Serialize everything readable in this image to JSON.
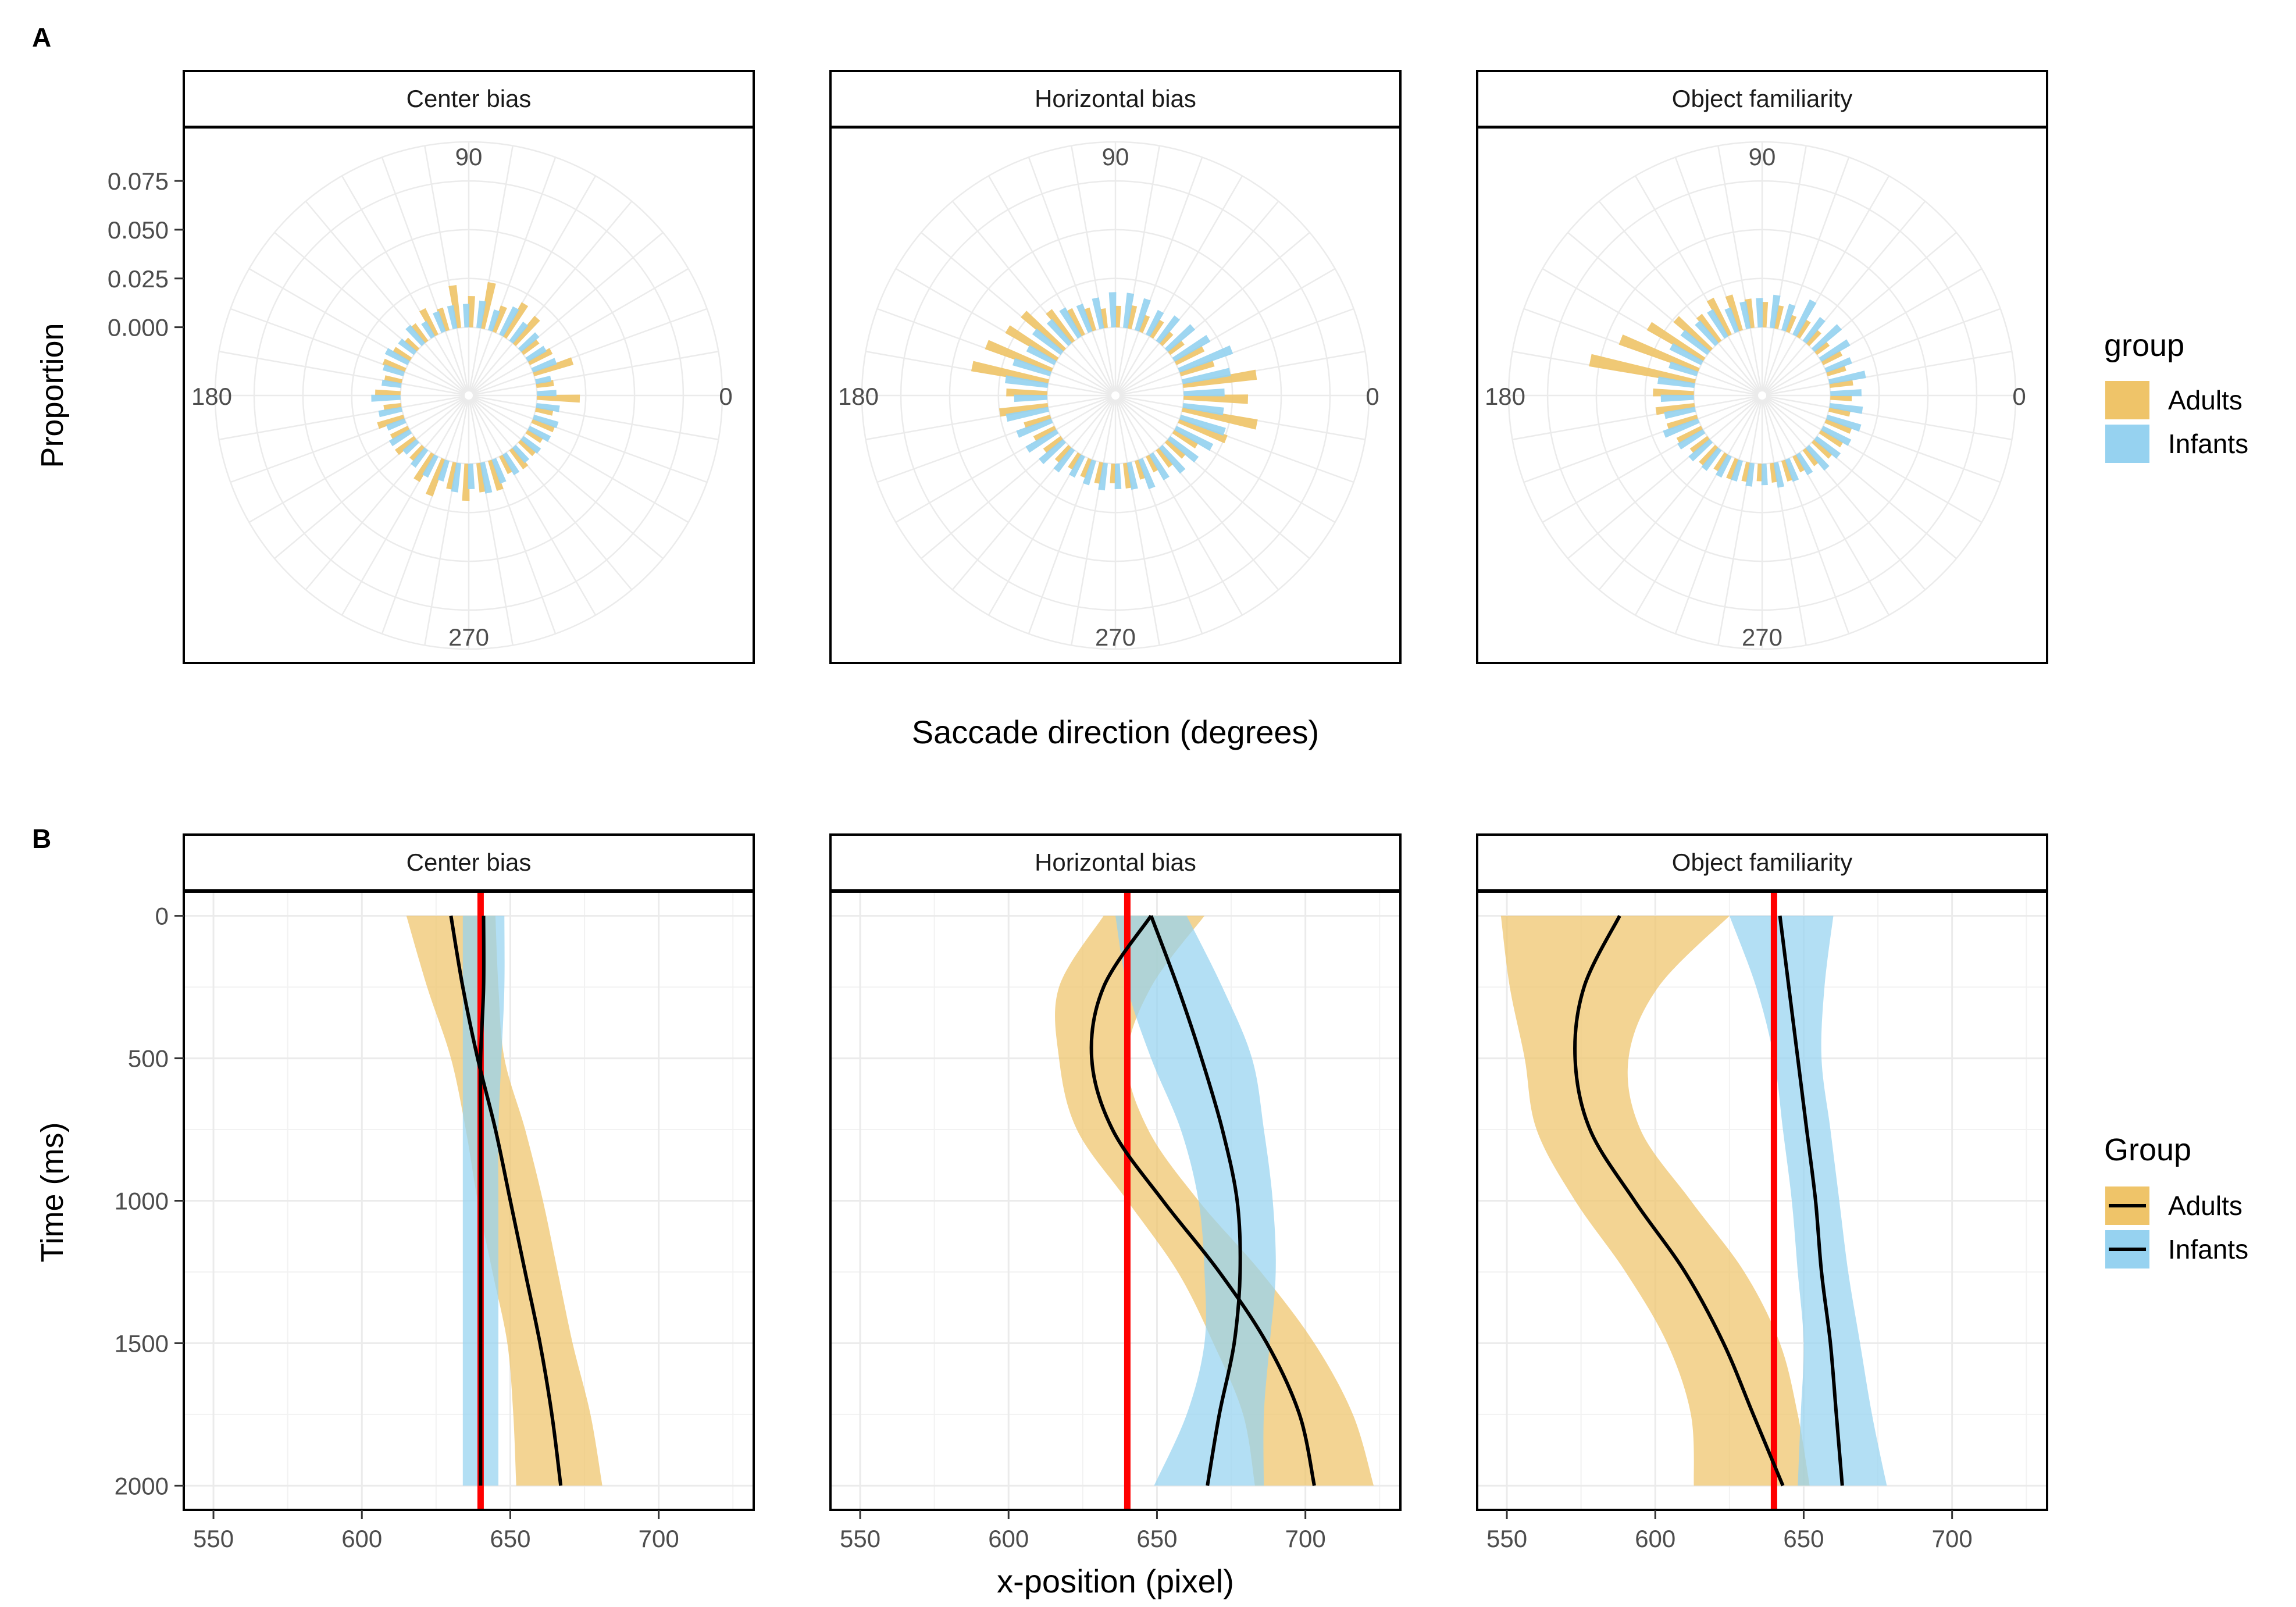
{
  "figure": {
    "panel_a_label": "A",
    "panel_b_label": "B",
    "colors": {
      "adults": "#EFC469",
      "infants": "#96D2F0",
      "reference_line": "#FF0000",
      "smooth_line": "#000000"
    }
  },
  "chart_data": [
    {
      "type": "polar-histogram",
      "panel": "A",
      "facets": [
        "Center bias",
        "Horizontal bias",
        "Object familiarity"
      ],
      "angle_labels": [
        "90",
        "180",
        "0",
        "270"
      ],
      "rlabel": "Proportion",
      "xlabel": "Saccade direction (degrees)",
      "r_ticks": [
        "0.000",
        "0.025",
        "0.050",
        "0.075"
      ],
      "r_tick_values": [
        0,
        0.025,
        0.05,
        0.075
      ],
      "r_range": [
        -0.035,
        0.095
      ],
      "bin_width_degrees": 10,
      "bin_centers_degrees": [
        0,
        10,
        20,
        30,
        40,
        50,
        60,
        70,
        80,
        90,
        100,
        110,
        120,
        130,
        140,
        150,
        160,
        170,
        180,
        190,
        200,
        210,
        220,
        230,
        240,
        250,
        260,
        270,
        280,
        290,
        300,
        310,
        320,
        330,
        340,
        350
      ],
      "legend": {
        "title": "group",
        "entries": [
          "Adults",
          "Infants"
        ],
        "position": "right"
      },
      "series": [
        {
          "facet": "Center bias",
          "name": "Adults",
          "values": [
            0.022,
            0.009,
            0.021,
            0.013,
            0.01,
            0.018,
            0.02,
            0.014,
            0.024,
            0.016,
            0.022,
            0.012,
            0.015,
            0.011,
            0.008,
            0.01,
            0.012,
            0.009,
            0.013,
            0.009,
            0.014,
            0.01,
            0.012,
            0.009,
            0.016,
            0.02,
            0.014,
            0.019,
            0.015,
            0.016,
            0.01,
            0.012,
            0.01,
            0.009,
            0.012,
            0.009
          ]
        },
        {
          "facet": "Center bias",
          "name": "Infants",
          "values": [
            0.01,
            0.008,
            0.013,
            0.011,
            0.012,
            0.012,
            0.016,
            0.011,
            0.014,
            0.012,
            0.012,
            0.011,
            0.009,
            0.012,
            0.01,
            0.013,
            0.011,
            0.01,
            0.015,
            0.012,
            0.01,
            0.012,
            0.009,
            0.011,
            0.012,
            0.011,
            0.015,
            0.013,
            0.016,
            0.013,
            0.012,
            0.01,
            0.011,
            0.012,
            0.013,
            0.012
          ]
        },
        {
          "facet": "Horizontal bias",
          "name": "Adults",
          "values": [
            0.033,
            0.038,
            0.018,
            0.016,
            0.009,
            0.008,
            0.01,
            0.009,
            0.012,
            0.011,
            0.01,
            0.012,
            0.015,
            0.02,
            0.028,
            0.03,
            0.036,
            0.04,
            0.021,
            0.025,
            0.014,
            0.012,
            0.011,
            0.01,
            0.009,
            0.01,
            0.011,
            0.01,
            0.013,
            0.01,
            0.009,
            0.011,
            0.012,
            0.014,
            0.026,
            0.039
          ]
        },
        {
          "facet": "Horizontal bias",
          "name": "Infants",
          "values": [
            0.021,
            0.025,
            0.029,
            0.021,
            0.018,
            0.016,
            0.014,
            0.017,
            0.018,
            0.018,
            0.016,
            0.015,
            0.017,
            0.016,
            0.018,
            0.016,
            0.02,
            0.022,
            0.017,
            0.022,
            0.019,
            0.018,
            0.016,
            0.014,
            0.012,
            0.013,
            0.014,
            0.013,
            0.014,
            0.016,
            0.015,
            0.017,
            0.018,
            0.021,
            0.024,
            0.021
          ]
        },
        {
          "facet": "Object familiarity",
          "name": "Adults",
          "values": [
            0.011,
            0.012,
            0.01,
            0.011,
            0.008,
            0.009,
            0.01,
            0.009,
            0.012,
            0.013,
            0.015,
            0.019,
            0.021,
            0.017,
            0.024,
            0.033,
            0.043,
            0.055,
            0.021,
            0.02,
            0.016,
            0.014,
            0.011,
            0.012,
            0.01,
            0.011,
            0.01,
            0.009,
            0.01,
            0.011,
            0.009,
            0.01,
            0.012,
            0.013,
            0.014,
            0.011
          ]
        },
        {
          "facet": "Object familiarity",
          "name": "Infants",
          "values": [
            0.016,
            0.019,
            0.014,
            0.017,
            0.018,
            0.015,
            0.02,
            0.014,
            0.017,
            0.015,
            0.014,
            0.013,
            0.016,
            0.015,
            0.017,
            0.018,
            0.015,
            0.019,
            0.017,
            0.016,
            0.019,
            0.015,
            0.014,
            0.013,
            0.012,
            0.011,
            0.012,
            0.011,
            0.013,
            0.012,
            0.012,
            0.015,
            0.015,
            0.016,
            0.018,
            0.017
          ]
        }
      ]
    },
    {
      "type": "line",
      "panel": "B",
      "facets": [
        "Center bias",
        "Horizontal bias",
        "Object familiarity"
      ],
      "xlabel": "x-position (pixel)",
      "ylabel": "Time (ms)",
      "x_ticks": [
        "550",
        "600",
        "650",
        "700"
      ],
      "x_tick_values": [
        550,
        600,
        650,
        700
      ],
      "y_ticks": [
        "0",
        "500",
        "1000",
        "1500",
        "2000"
      ],
      "y_tick_values": [
        0,
        500,
        1000,
        1500,
        2000
      ],
      "xlim": [
        540,
        732
      ],
      "ylim": [
        -85,
        2085
      ],
      "reference_x": 640,
      "legend": {
        "title": "Group",
        "entries": [
          "Adults",
          "Infants"
        ],
        "position": "right"
      },
      "time": [
        0,
        250,
        500,
        750,
        1000,
        1250,
        1500,
        1750,
        2000
      ],
      "series": [
        {
          "facet": "Center bias",
          "name": "Adults",
          "mean": [
            630,
            634,
            639,
            645,
            650,
            655,
            660,
            664,
            667
          ],
          "lower": [
            615,
            622,
            630,
            635,
            639,
            644,
            649,
            651,
            652
          ],
          "upper": [
            645,
            646,
            648,
            655,
            661,
            666,
            671,
            677,
            681
          ]
        },
        {
          "facet": "Center bias",
          "name": "Infants",
          "mean": [
            641,
            641,
            640,
            640,
            640,
            640,
            640,
            640,
            640
          ],
          "lower": [
            634,
            634,
            634,
            634,
            634,
            634,
            634,
            634,
            634
          ],
          "upper": [
            648,
            648,
            647,
            646,
            646,
            646,
            646,
            646,
            646
          ]
        },
        {
          "facet": "Horizontal bias",
          "name": "Adults",
          "mean": [
            648,
            632,
            628,
            635,
            652,
            671,
            687,
            698,
            703
          ],
          "lower": [
            632,
            617,
            617,
            623,
            640,
            657,
            669,
            679,
            683
          ],
          "upper": [
            666,
            648,
            640,
            647,
            664,
            685,
            703,
            716,
            723
          ]
        },
        {
          "facet": "Horizontal bias",
          "name": "Infants",
          "mean": [
            648,
            657,
            665,
            672,
            677,
            678,
            676,
            671,
            667
          ],
          "lower": [
            636,
            640,
            648,
            658,
            664,
            666,
            666,
            660,
            649
          ],
          "upper": [
            660,
            672,
            682,
            686,
            689,
            690,
            688,
            686,
            686
          ]
        },
        {
          "facet": "Object familiarity",
          "name": "Adults",
          "mean": [
            588,
            576,
            573,
            578,
            593,
            610,
            623,
            633,
            643
          ],
          "lower": [
            548,
            551,
            556,
            560,
            573,
            590,
            604,
            612,
            613
          ],
          "upper": [
            625,
            601,
            591,
            595,
            612,
            630,
            642,
            648,
            652
          ]
        },
        {
          "facet": "Object familiarity",
          "name": "Infants",
          "mean": [
            642,
            645,
            648,
            651,
            654,
            656,
            659,
            661,
            663
          ],
          "lower": [
            625,
            634,
            640,
            643,
            646,
            648,
            650,
            649,
            648
          ],
          "upper": [
            660,
            657,
            656,
            659,
            662,
            665,
            669,
            673,
            678
          ]
        }
      ]
    }
  ]
}
